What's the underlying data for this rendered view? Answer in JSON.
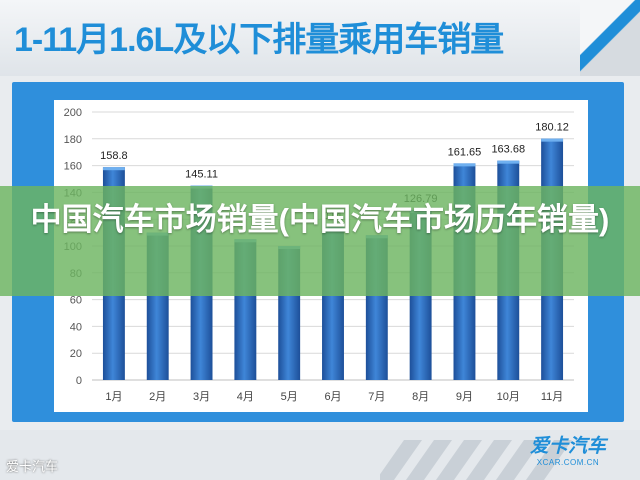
{
  "banner": {
    "title": "1-11月1.6L及以下排量乘用车销量"
  },
  "watermark": {
    "text": "中国汽车市场销量(中国汽车市场历年销量)"
  },
  "footer": {
    "left_text": "爱卡汽车",
    "logo_main": "爱卡汽车",
    "logo_sub": "XCAR.COM.CN"
  },
  "colors": {
    "bar": "#2f6fc6",
    "banner_title": "#1f8ed8",
    "frame": "#2f8fdc"
  },
  "chart_data": {
    "type": "bar",
    "categories": [
      "1月",
      "2月",
      "3月",
      "4月",
      "5月",
      "6月",
      "7月",
      "8月",
      "9月",
      "10月",
      "11月"
    ],
    "values": [
      158.8,
      110,
      145.11,
      105,
      100,
      114.1,
      108,
      126.79,
      161.65,
      163.68,
      180.12
    ],
    "labels": [
      "158.8",
      "",
      "145.11",
      "",
      "",
      "114",
      "",
      "126.79",
      "161.65",
      "163.68",
      "180.12"
    ],
    "yticks": [
      "0",
      "20",
      "40",
      "60",
      "80",
      "100",
      "120",
      "140",
      "160",
      "180",
      "200"
    ],
    "ylim": [
      0,
      200
    ],
    "grid": true
  }
}
